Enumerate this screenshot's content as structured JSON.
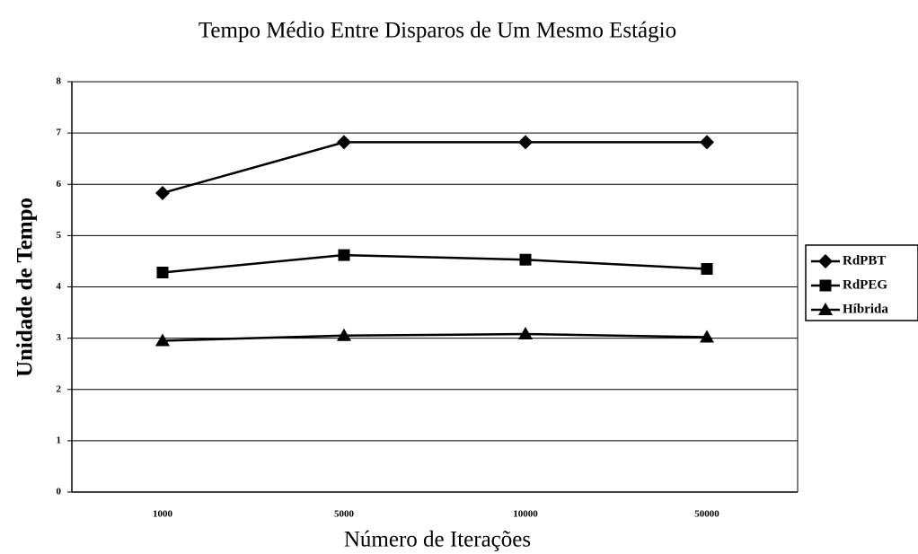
{
  "chart_data": {
    "type": "line",
    "title": "Tempo Médio Entre Disparos de Um Mesmo Estágio",
    "x_label": "Número de Iterações",
    "y_label": "Unidade de Tempo",
    "categories": [
      "1000",
      "5000",
      "10000",
      "50000"
    ],
    "series": [
      {
        "name": "RdPBT",
        "color": "#000000",
        "marker": "diamond",
        "values": [
          5.83,
          6.82,
          6.82,
          6.82
        ]
      },
      {
        "name": "RdPEG",
        "color": "#000000",
        "marker": "square",
        "values": [
          4.28,
          4.62,
          4.53,
          4.35
        ]
      },
      {
        "name": "Híbrida",
        "color": "#000000",
        "marker": "triangle",
        "values": [
          2.95,
          3.05,
          3.08,
          3.02
        ]
      }
    ],
    "ylim": [
      0,
      8
    ],
    "yticks": [
      0,
      1,
      2,
      3,
      4,
      5,
      6,
      7,
      8
    ],
    "grid": true,
    "legend": "right"
  }
}
